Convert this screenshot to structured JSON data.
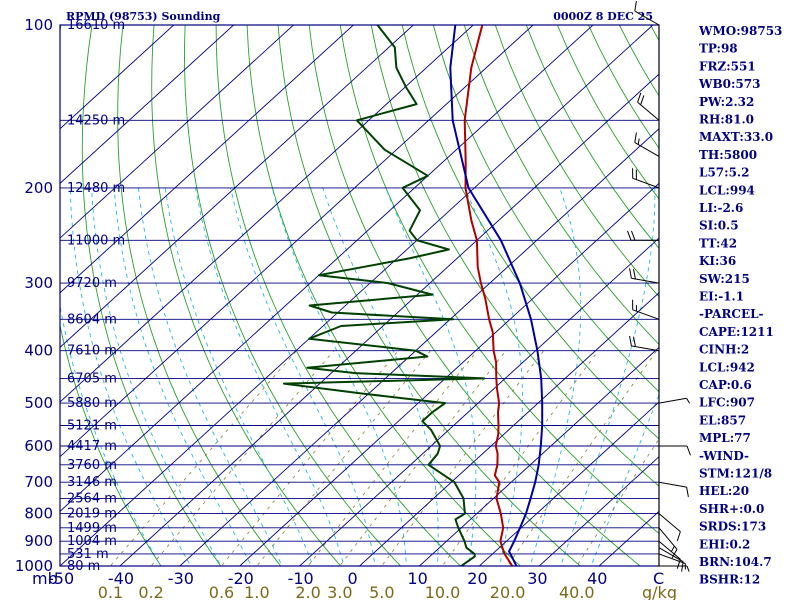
{
  "chart_data": {
    "type": "skew-t",
    "title_left": "RPMD (98753) Sounding",
    "title_right": "0000Z  8 DEC 25",
    "pressure_levels": [
      100,
      200,
      300,
      400,
      500,
      600,
      700,
      800,
      900,
      1000
    ],
    "pressure_axis_label": "mb",
    "height_levels": [
      {
        "p": 100,
        "label": "16610 m"
      },
      {
        "p": 150,
        "label": "14250 m"
      },
      {
        "p": 200,
        "label": "12480 m"
      },
      {
        "p": 250,
        "label": "11000 m"
      },
      {
        "p": 300,
        "label": "9720 m"
      },
      {
        "p": 350,
        "label": "8604 m"
      },
      {
        "p": 400,
        "label": "7610 m"
      },
      {
        "p": 450,
        "label": "6705 m"
      },
      {
        "p": 500,
        "label": "5880 m"
      },
      {
        "p": 550,
        "label": "5121 m"
      },
      {
        "p": 600,
        "label": "4417 m"
      },
      {
        "p": 650,
        "label": "3760 m"
      },
      {
        "p": 700,
        "label": "3146 m"
      },
      {
        "p": 750,
        "label": "2564 m"
      },
      {
        "p": 800,
        "label": "2019 m"
      },
      {
        "p": 850,
        "label": "1499 m"
      },
      {
        "p": 900,
        "label": "1004 m"
      },
      {
        "p": 950,
        "label": "531 m"
      },
      {
        "p": 1000,
        "label": "80 m"
      }
    ],
    "temperature_ticks": [
      -50,
      -40,
      -30,
      -20,
      -10,
      0,
      10,
      20,
      30,
      40
    ],
    "temperature_tick_labels": [
      "-50",
      "-40",
      "-30",
      "-20",
      "-10",
      "0",
      "10",
      "20",
      "30",
      "40"
    ],
    "temperature_unit": "C",
    "mixing_ratio_labels": [
      "0.1",
      "0.2",
      "0.6",
      "1.0",
      "2.0",
      "3.0",
      "5.0",
      "10.0",
      "20.0",
      "40.0"
    ],
    "mixing_ratio_unit": "g/kg",
    "p_range": [
      100,
      1000
    ],
    "t_range_at_bottom": [
      -50,
      50
    ],
    "series": [
      {
        "name": "Temperature",
        "color": "#b00000",
        "points": [
          [
            1005,
            26.5
          ],
          [
            1000,
            25.5
          ],
          [
            950,
            22.0
          ],
          [
            925,
            20.5
          ],
          [
            900,
            19.0
          ],
          [
            850,
            17.0
          ],
          [
            800,
            14.0
          ],
          [
            750,
            10.5
          ],
          [
            700,
            8.0
          ],
          [
            680,
            6.0
          ],
          [
            650,
            4.5
          ],
          [
            620,
            2.5
          ],
          [
            600,
            0.8
          ],
          [
            570,
            -1.0
          ],
          [
            550,
            -2.5
          ],
          [
            520,
            -5.0
          ],
          [
            500,
            -6.5
          ],
          [
            470,
            -9.5
          ],
          [
            450,
            -11.5
          ],
          [
            420,
            -14.5
          ],
          [
            400,
            -17.0
          ],
          [
            370,
            -20.5
          ],
          [
            350,
            -23.5
          ],
          [
            320,
            -28.0
          ],
          [
            300,
            -31.5
          ],
          [
            280,
            -35.0
          ],
          [
            250,
            -40.0
          ],
          [
            230,
            -44.5
          ],
          [
            200,
            -51.5
          ],
          [
            180,
            -56.0
          ],
          [
            150,
            -64.0
          ],
          [
            120,
            -72.5
          ],
          [
            100,
            -78.5
          ]
        ]
      },
      {
        "name": "Dewpoint",
        "color": "#004000",
        "points": [
          [
            1005,
            18.0
          ],
          [
            1000,
            17.0
          ],
          [
            960,
            17.5
          ],
          [
            950,
            17.0
          ],
          [
            925,
            14.5
          ],
          [
            900,
            13.0
          ],
          [
            850,
            9.5
          ],
          [
            820,
            7.5
          ],
          [
            800,
            8.0
          ],
          [
            750,
            5.0
          ],
          [
            700,
            0.5
          ],
          [
            650,
            -7.0
          ],
          [
            620,
            -7.5
          ],
          [
            600,
            -8.5
          ],
          [
            560,
            -13.0
          ],
          [
            540,
            -16.0
          ],
          [
            520,
            -16.0
          ],
          [
            500,
            -15.5
          ],
          [
            480,
            -31.0
          ],
          [
            460,
            -46.0
          ],
          [
            450,
            -13.5
          ],
          [
            440,
            -36.0
          ],
          [
            430,
            -45.0
          ],
          [
            410,
            -27.0
          ],
          [
            400,
            -30.0
          ],
          [
            380,
            -50.0
          ],
          [
            360,
            -47.0
          ],
          [
            350,
            -29.5
          ],
          [
            340,
            -51.0
          ],
          [
            330,
            -56.0
          ],
          [
            315,
            -37.5
          ],
          [
            300,
            -47.0
          ],
          [
            290,
            -60.0
          ],
          [
            270,
            -48.0
          ],
          [
            260,
            -43.0
          ],
          [
            250,
            -50.0
          ],
          [
            240,
            -53.0
          ],
          [
            220,
            -55.0
          ],
          [
            200,
            -62.0
          ],
          [
            190,
            -60.0
          ],
          [
            170,
            -72.0
          ],
          [
            150,
            -82.0
          ],
          [
            140,
            -75.0
          ],
          [
            130,
            -80.0
          ],
          [
            120,
            -85.0
          ],
          [
            110,
            -89.0
          ],
          [
            100,
            -96.0
          ]
        ]
      },
      {
        "name": "Parcel",
        "color": "#0000a0",
        "points": [
          [
            1005,
            26.5
          ],
          [
            950,
            23.0
          ],
          [
            940,
            22.3
          ],
          [
            900,
            21.3
          ],
          [
            850,
            19.8
          ],
          [
            800,
            18.2
          ],
          [
            750,
            16.2
          ],
          [
            700,
            14.0
          ],
          [
            650,
            11.4
          ],
          [
            600,
            8.3
          ],
          [
            550,
            4.8
          ],
          [
            500,
            0.7
          ],
          [
            450,
            -4.0
          ],
          [
            400,
            -9.7
          ],
          [
            350,
            -16.5
          ],
          [
            300,
            -25.0
          ],
          [
            250,
            -36.0
          ],
          [
            200,
            -51.0
          ],
          [
            150,
            -66.0
          ],
          [
            120,
            -76.0
          ],
          [
            100,
            -83.0
          ]
        ]
      }
    ],
    "wind_barbs": [
      {
        "p": 1000,
        "dir": 90,
        "spd": 5
      },
      {
        "p": 950,
        "dir": 110,
        "spd": 5
      },
      {
        "p": 925,
        "dir": 120,
        "spd": 10
      },
      {
        "p": 900,
        "dir": 130,
        "spd": 10
      },
      {
        "p": 850,
        "dir": 140,
        "spd": 15
      },
      {
        "p": 800,
        "dir": 130,
        "spd": 10
      },
      {
        "p": 700,
        "dir": 100,
        "spd": 10
      },
      {
        "p": 600,
        "dir": 90,
        "spd": 10
      },
      {
        "p": 500,
        "dir": 80,
        "spd": 5
      },
      {
        "p": 400,
        "dir": 280,
        "spd": 20
      },
      {
        "p": 350,
        "dir": 290,
        "spd": 15
      },
      {
        "p": 300,
        "dir": 280,
        "spd": 20
      },
      {
        "p": 250,
        "dir": 270,
        "spd": 20
      },
      {
        "p": 200,
        "dir": 290,
        "spd": 20
      },
      {
        "p": 175,
        "dir": 300,
        "spd": 15
      },
      {
        "p": 150,
        "dir": 310,
        "spd": 20
      },
      {
        "p": 100,
        "dir": 300,
        "spd": 10
      }
    ],
    "indices": [
      "WMO:98753",
      "TP:98",
      "FRZ:551",
      "WB0:573",
      "PW:2.32",
      "RH:81.0",
      "MAXT:33.0",
      "TH:5800",
      "L57:5.2",
      "LCL:994",
      "LI:-2.6",
      "SI:0.5",
      "TT:42",
      "KI:36",
      "SW:215",
      "EI:-1.1",
      "-PARCEL-",
      "CAPE:1211",
      "CINH:2",
      "LCL:942",
      "CAP:0.6",
      "LFC:907",
      "EL:857",
      "MPL:77",
      "-WIND-",
      "STM:121/8",
      "HEL:20",
      "SHR+:0.0",
      "SRDS:173",
      "EHI:0.2",
      "BRN:104.7",
      "BSHR:12"
    ]
  },
  "colors": {
    "frame": "#000080",
    "isotherm": "#000080",
    "dry_adiabat": "#2aa02a",
    "moist_adiabat": "#29b6e0",
    "mixing_ratio": "#8a7a30",
    "mixing_label": "#7a6a1a"
  }
}
